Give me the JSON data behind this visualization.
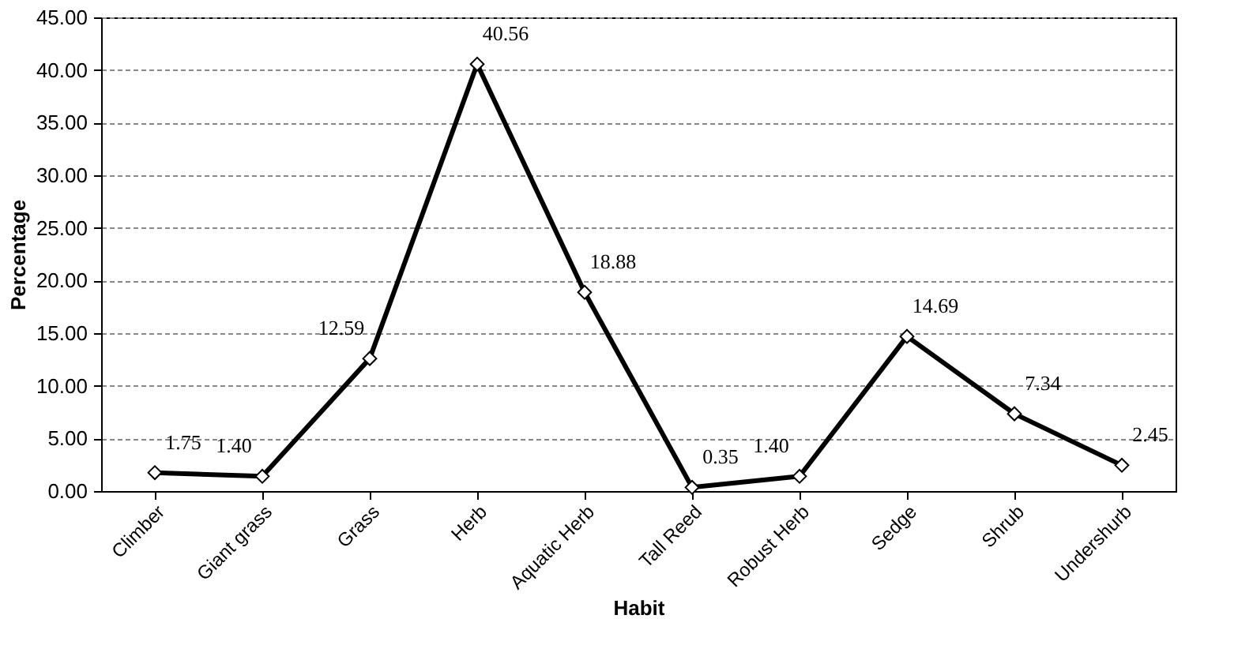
{
  "chart_data": {
    "type": "line",
    "xlabel": "Habit",
    "ylabel": "Percentage",
    "categories": [
      "Climber",
      "Giant grass",
      "Grass",
      "Herb",
      "Aquatic Herb",
      "Tall Reed",
      "Robust Herb",
      "Sedge",
      "Shrub",
      "Undershurb"
    ],
    "series": [
      {
        "color": "#000000",
        "values": [
          1.75,
          1.4,
          12.59,
          40.56,
          18.88,
          0.35,
          1.4,
          14.69,
          7.34,
          2.45
        ],
        "value_labels": [
          "1.75",
          "1.40",
          "12.59",
          "40.56",
          "18.88",
          "0.35",
          "1.40",
          "14.69",
          "7.34",
          "2.45"
        ]
      }
    ],
    "ylim": [
      0,
      45
    ],
    "yticks": [
      {
        "value": 0,
        "label": "0.00"
      },
      {
        "value": 5,
        "label": "5.00"
      },
      {
        "value": 10,
        "label": "10.00"
      },
      {
        "value": 15,
        "label": "15.00"
      },
      {
        "value": 20,
        "label": "20.00"
      },
      {
        "value": 25,
        "label": "25.00"
      },
      {
        "value": 30,
        "label": "30.00"
      },
      {
        "value": 35,
        "label": "35.00"
      },
      {
        "value": 40,
        "label": "40.00"
      },
      {
        "value": 45,
        "label": "45.00"
      }
    ],
    "grid": "y",
    "marker": "diamond",
    "line_style": "solid",
    "legend": false
  }
}
